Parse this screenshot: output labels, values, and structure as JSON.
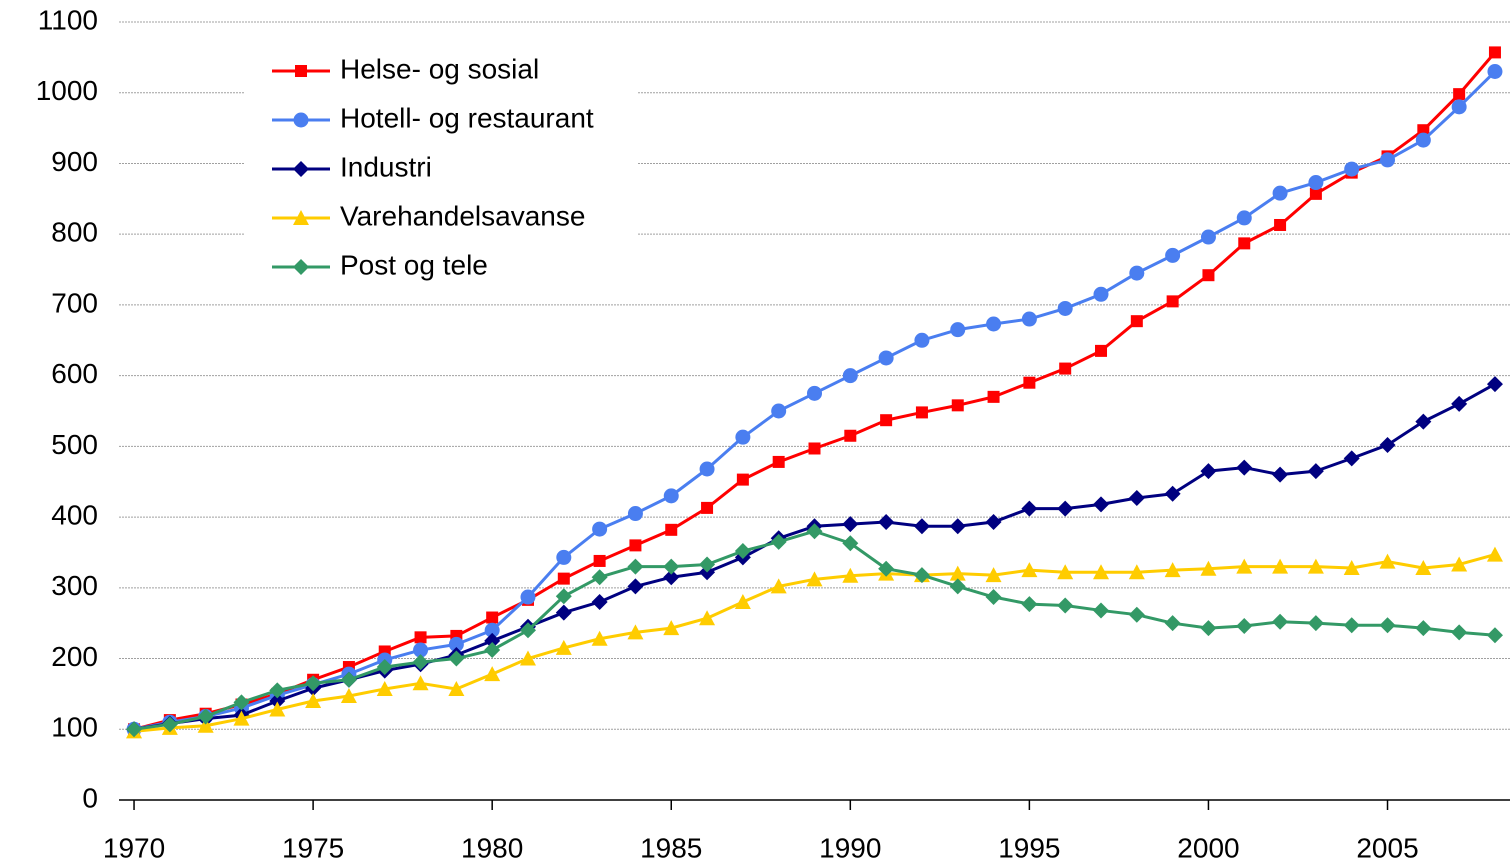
{
  "chart_data": {
    "type": "line",
    "x": [
      1970,
      1971,
      1972,
      1973,
      1974,
      1975,
      1976,
      1977,
      1978,
      1979,
      1980,
      1981,
      1982,
      1983,
      1984,
      1985,
      1986,
      1987,
      1988,
      1989,
      1990,
      1991,
      1992,
      1993,
      1994,
      1995,
      1996,
      1997,
      1998,
      1999,
      2000,
      2001,
      2002,
      2003,
      2004,
      2005,
      2006,
      2007,
      2008
    ],
    "series": [
      {
        "name": "Helse- og sosial",
        "color": "#ff0000",
        "marker": "square",
        "values": [
          100,
          113,
          122,
          135,
          150,
          170,
          188,
          210,
          230,
          232,
          258,
          283,
          313,
          338,
          360,
          382,
          413,
          453,
          478,
          497,
          515,
          537,
          548,
          558,
          570,
          590,
          610,
          635,
          677,
          705,
          742,
          787,
          813,
          857,
          887,
          910,
          947,
          998,
          1057
        ]
      },
      {
        "name": "Hotell- og restaurant",
        "color": "#4a7ef0",
        "marker": "circle",
        "values": [
          100,
          110,
          118,
          130,
          148,
          163,
          178,
          198,
          212,
          220,
          240,
          287,
          343,
          383,
          405,
          430,
          468,
          513,
          550,
          575,
          600,
          625,
          650,
          665,
          673,
          680,
          695,
          715,
          745,
          770,
          796,
          823,
          858,
          873,
          892,
          905,
          933,
          980,
          1030
        ]
      },
      {
        "name": "Industri",
        "color": "#000080",
        "marker": "diamond",
        "values": [
          100,
          108,
          115,
          120,
          140,
          158,
          170,
          183,
          192,
          205,
          225,
          245,
          265,
          280,
          302,
          315,
          322,
          343,
          370,
          387,
          390,
          393,
          387,
          387,
          393,
          412,
          412,
          418,
          427,
          433,
          465,
          470,
          460,
          465,
          483,
          502,
          535,
          560,
          588
        ]
      },
      {
        "name": "Varehandelsavanse",
        "color": "#ffcc00",
        "marker": "triangle",
        "values": [
          97,
          102,
          105,
          115,
          128,
          140,
          147,
          157,
          165,
          157,
          178,
          200,
          215,
          228,
          237,
          243,
          257,
          280,
          302,
          312,
          317,
          320,
          318,
          320,
          318,
          325,
          322,
          322,
          322,
          325,
          327,
          330,
          330,
          330,
          328,
          337,
          328,
          333,
          347
        ]
      },
      {
        "name": "Post og tele",
        "color": "#339966",
        "marker": "diamond",
        "values": [
          100,
          107,
          118,
          138,
          155,
          165,
          170,
          188,
          195,
          200,
          212,
          240,
          288,
          315,
          330,
          330,
          333,
          352,
          365,
          380,
          363,
          327,
          318,
          302,
          287,
          277,
          275,
          268,
          262,
          250,
          243,
          246,
          252,
          250,
          247,
          247,
          243,
          237,
          233
        ]
      }
    ],
    "xlim": [
      1969.58,
      2008.42
    ],
    "xticks": [
      1970,
      1975,
      1980,
      1985,
      1990,
      1995,
      2000,
      2005
    ],
    "ylim": [
      0,
      1100
    ],
    "yticks": [
      0,
      100,
      200,
      300,
      400,
      500,
      600,
      700,
      800,
      900,
      1000,
      1100
    ],
    "grid": true,
    "legend": "upper left"
  }
}
